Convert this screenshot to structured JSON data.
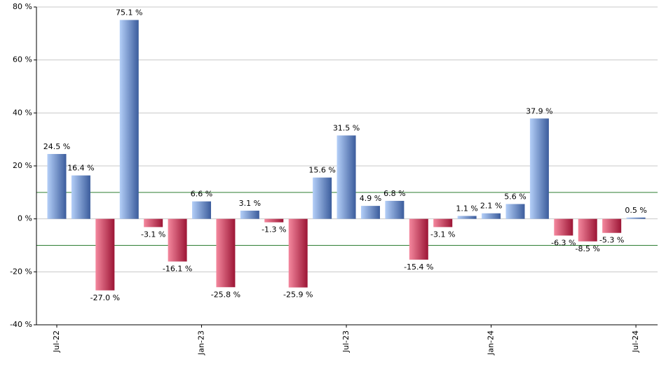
{
  "chart_data": {
    "type": "bar",
    "categories": [
      "Jul-22",
      null,
      null,
      null,
      null,
      null,
      "Jan-23",
      null,
      null,
      null,
      null,
      null,
      "Jul-23",
      null,
      null,
      null,
      null,
      null,
      "Jan-24",
      null,
      null,
      null,
      null,
      null,
      "Jul-24"
    ],
    "values": [
      24.5,
      16.4,
      -27.0,
      75.1,
      -3.1,
      -16.1,
      6.6,
      -25.8,
      3.1,
      -1.3,
      -25.9,
      15.6,
      31.5,
      4.9,
      6.8,
      -15.4,
      -3.1,
      1.1,
      2.1,
      5.6,
      37.9,
      -6.3,
      -8.5,
      -5.3,
      0.5
    ],
    "value_labels": [
      "24.5 %",
      "16.4 %",
      "-27.0 %",
      "75.1 %",
      "-3.1 %",
      "-16.1 %",
      "6.6 %",
      "-25.8 %",
      "3.1 %",
      "-1.3 %",
      "-25.9 %",
      "15.6 %",
      "31.5 %",
      "4.9 %",
      "6.8 %",
      "-15.4 %",
      "-3.1 %",
      "1.1 %",
      "2.1 %",
      "5.6 %",
      "37.9 %",
      "-6.3 %",
      "-8.5 %",
      "-5.3 %",
      "0.5 %"
    ],
    "ylim": [
      -40,
      80
    ],
    "yticks": [
      {
        "value": -40,
        "label": "-40 %"
      },
      {
        "value": -20,
        "label": "-20 %"
      },
      {
        "value": 0,
        "label": "0 %"
      },
      {
        "value": 20,
        "label": "20 %"
      },
      {
        "value": 40,
        "label": "40 %"
      },
      {
        "value": 60,
        "label": "60 %"
      },
      {
        "value": 80,
        "label": "80 %"
      }
    ],
    "reference_lines": [
      10,
      -10
    ],
    "reference_color": "#2e7d32",
    "positive_color": [
      "#b4cff8",
      "#3b5c9c"
    ],
    "negative_color": [
      "#f4889e",
      "#9c1535"
    ],
    "grid": true
  }
}
